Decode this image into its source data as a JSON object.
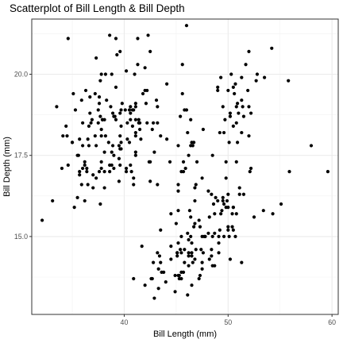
{
  "chart_data": {
    "type": "scatter",
    "title": "Scatterplot of Bill Length & Bill Depth",
    "xlabel": "Bill Length (mm)",
    "ylabel": "Bill Depth (mm)",
    "xlim": [
      31.1,
      60.6
    ],
    "ylim": [
      12.6,
      21.7
    ],
    "xticks": [
      40,
      50,
      60
    ],
    "yticks": [
      15.0,
      17.5,
      20.0
    ],
    "xtick_labels": [
      "40",
      "50",
      "60"
    ],
    "ytick_labels": [
      "15.0",
      "17.5",
      "20.0"
    ],
    "grid": true,
    "theme": "bw",
    "point_color": "#000000",
    "points": [
      [
        39.1,
        18.7
      ],
      [
        39.5,
        17.4
      ],
      [
        40.3,
        18.0
      ],
      [
        36.7,
        19.3
      ],
      [
        39.3,
        20.6
      ],
      [
        38.9,
        17.8
      ],
      [
        39.2,
        19.6
      ],
      [
        34.1,
        18.1
      ],
      [
        42.0,
        20.2
      ],
      [
        37.8,
        17.1
      ],
      [
        37.8,
        17.3
      ],
      [
        41.1,
        17.6
      ],
      [
        38.6,
        21.2
      ],
      [
        34.6,
        21.1
      ],
      [
        36.6,
        17.8
      ],
      [
        38.7,
        19.0
      ],
      [
        42.5,
        20.7
      ],
      [
        34.4,
        18.4
      ],
      [
        46.0,
        21.5
      ],
      [
        37.8,
        18.3
      ],
      [
        37.7,
        18.7
      ],
      [
        35.9,
        19.2
      ],
      [
        38.2,
        18.1
      ],
      [
        38.8,
        17.2
      ],
      [
        35.3,
        18.9
      ],
      [
        40.6,
        18.6
      ],
      [
        40.5,
        17.9
      ],
      [
        37.9,
        18.6
      ],
      [
        40.5,
        18.9
      ],
      [
        39.5,
        16.7
      ],
      [
        37.2,
        18.1
      ],
      [
        39.5,
        17.8
      ],
      [
        40.9,
        18.9
      ],
      [
        36.4,
        17.0
      ],
      [
        39.2,
        21.1
      ],
      [
        38.8,
        20.0
      ],
      [
        42.2,
        18.5
      ],
      [
        37.6,
        19.3
      ],
      [
        39.8,
        19.1
      ],
      [
        36.5,
        18.0
      ],
      [
        40.8,
        18.4
      ],
      [
        36.0,
        18.5
      ],
      [
        44.1,
        19.7
      ],
      [
        37.0,
        16.9
      ],
      [
        39.6,
        18.8
      ],
      [
        41.1,
        19.0
      ],
      [
        37.5,
        18.9
      ],
      [
        42.3,
        21.2
      ],
      [
        39.6,
        17.7
      ],
      [
        40.1,
        18.9
      ],
      [
        35.0,
        17.9
      ],
      [
        42.0,
        19.5
      ],
      [
        34.5,
        18.1
      ],
      [
        41.4,
        18.6
      ],
      [
        39.0,
        17.5
      ],
      [
        40.6,
        18.8
      ],
      [
        36.5,
        16.6
      ],
      [
        37.6,
        19.1
      ],
      [
        35.7,
        16.9
      ],
      [
        41.3,
        21.1
      ],
      [
        37.6,
        17.0
      ],
      [
        41.1,
        18.2
      ],
      [
        36.4,
        17.1
      ],
      [
        41.6,
        18.0
      ],
      [
        35.5,
        16.2
      ],
      [
        41.1,
        19.1
      ],
      [
        35.9,
        16.6
      ],
      [
        41.8,
        19.4
      ],
      [
        33.5,
        19.0
      ],
      [
        39.7,
        18.4
      ],
      [
        39.6,
        17.2
      ],
      [
        45.8,
        18.9
      ],
      [
        35.5,
        17.5
      ],
      [
        42.8,
        18.5
      ],
      [
        40.9,
        16.8
      ],
      [
        37.2,
        19.4
      ],
      [
        36.2,
        16.1
      ],
      [
        42.1,
        19.1
      ],
      [
        34.6,
        17.2
      ],
      [
        42.9,
        17.6
      ],
      [
        36.7,
        18.8
      ],
      [
        35.1,
        19.4
      ],
      [
        37.3,
        17.8
      ],
      [
        41.3,
        20.3
      ],
      [
        36.3,
        19.5
      ],
      [
        36.9,
        18.6
      ],
      [
        38.3,
        19.2
      ],
      [
        38.9,
        18.8
      ],
      [
        35.7,
        18.0
      ],
      [
        41.1,
        18.1
      ],
      [
        34.0,
        17.1
      ],
      [
        39.6,
        18.1
      ],
      [
        36.2,
        17.3
      ],
      [
        40.8,
        18.9
      ],
      [
        38.1,
        18.6
      ],
      [
        40.3,
        18.5
      ],
      [
        33.1,
        16.1
      ],
      [
        43.2,
        18.5
      ],
      [
        35.0,
        17.9
      ],
      [
        41.0,
        20.0
      ],
      [
        37.7,
        16.0
      ],
      [
        37.8,
        20.0
      ],
      [
        37.9,
        18.6
      ],
      [
        39.7,
        18.9
      ],
      [
        38.6,
        17.2
      ],
      [
        38.2,
        20.0
      ],
      [
        38.1,
        17.0
      ],
      [
        43.2,
        19.0
      ],
      [
        38.1,
        16.5
      ],
      [
        45.6,
        20.3
      ],
      [
        39.7,
        17.7
      ],
      [
        42.2,
        19.5
      ],
      [
        39.6,
        20.7
      ],
      [
        42.7,
        18.3
      ],
      [
        38.6,
        17.0
      ],
      [
        37.3,
        20.5
      ],
      [
        35.7,
        17.0
      ],
      [
        41.1,
        18.6
      ],
      [
        36.2,
        17.2
      ],
      [
        37.7,
        19.8
      ],
      [
        40.2,
        17.0
      ],
      [
        41.4,
        18.5
      ],
      [
        35.2,
        15.9
      ],
      [
        40.6,
        19.0
      ],
      [
        38.8,
        17.6
      ],
      [
        41.5,
        18.3
      ],
      [
        39.0,
        17.1
      ],
      [
        44.1,
        18.0
      ],
      [
        38.5,
        17.9
      ],
      [
        43.1,
        19.2
      ],
      [
        36.8,
        18.5
      ],
      [
        37.5,
        18.5
      ],
      [
        38.1,
        17.6
      ],
      [
        41.1,
        17.5
      ],
      [
        35.6,
        17.5
      ],
      [
        40.2,
        20.1
      ],
      [
        37.0,
        16.5
      ],
      [
        39.7,
        17.9
      ],
      [
        40.2,
        17.1
      ],
      [
        40.6,
        17.2
      ],
      [
        32.1,
        15.5
      ],
      [
        40.7,
        17.0
      ],
      [
        37.3,
        16.8
      ],
      [
        39.0,
        18.7
      ],
      [
        39.2,
        18.6
      ],
      [
        36.6,
        18.4
      ],
      [
        36.0,
        17.8
      ],
      [
        37.8,
        18.1
      ],
      [
        36.0,
        17.1
      ],
      [
        41.5,
        18.5
      ],
      [
        46.1,
        13.2
      ],
      [
        50.0,
        16.3
      ],
      [
        48.7,
        14.1
      ],
      [
        50.0,
        15.2
      ],
      [
        47.6,
        14.5
      ],
      [
        46.5,
        13.5
      ],
      [
        45.4,
        14.6
      ],
      [
        46.7,
        15.3
      ],
      [
        43.3,
        13.4
      ],
      [
        46.8,
        15.4
      ],
      [
        40.9,
        13.7
      ],
      [
        49.0,
        16.1
      ],
      [
        45.5,
        13.7
      ],
      [
        48.4,
        14.6
      ],
      [
        45.8,
        14.6
      ],
      [
        49.3,
        15.7
      ],
      [
        42.0,
        13.5
      ],
      [
        49.2,
        15.2
      ],
      [
        46.2,
        14.5
      ],
      [
        48.7,
        15.1
      ],
      [
        50.2,
        14.3
      ],
      [
        45.1,
        14.5
      ],
      [
        46.5,
        14.5
      ],
      [
        46.3,
        15.8
      ],
      [
        42.9,
        13.1
      ],
      [
        46.1,
        15.1
      ],
      [
        44.5,
        14.3
      ],
      [
        47.8,
        15.0
      ],
      [
        48.2,
        14.3
      ],
      [
        50.0,
        15.3
      ],
      [
        47.3,
        15.3
      ],
      [
        42.8,
        14.2
      ],
      [
        45.1,
        14.5
      ],
      [
        59.6,
        17.0
      ],
      [
        49.1,
        14.8
      ],
      [
        48.4,
        16.3
      ],
      [
        42.6,
        13.7
      ],
      [
        44.4,
        17.3
      ],
      [
        44.0,
        13.6
      ],
      [
        48.7,
        15.7
      ],
      [
        42.7,
        13.7
      ],
      [
        49.6,
        16.0
      ],
      [
        45.3,
        13.7
      ],
      [
        49.6,
        15.0
      ],
      [
        50.5,
        15.9
      ],
      [
        43.6,
        13.9
      ],
      [
        45.5,
        13.9
      ],
      [
        50.5,
        15.9
      ],
      [
        44.9,
        13.3
      ],
      [
        45.2,
        15.8
      ],
      [
        46.6,
        14.2
      ],
      [
        48.5,
        14.1
      ],
      [
        45.1,
        14.4
      ],
      [
        50.1,
        15.0
      ],
      [
        46.5,
        14.4
      ],
      [
        45.0,
        15.4
      ],
      [
        43.8,
        13.9
      ],
      [
        45.5,
        15.0
      ],
      [
        43.2,
        14.5
      ],
      [
        50.4,
        15.3
      ],
      [
        45.3,
        13.8
      ],
      [
        46.2,
        14.9
      ],
      [
        45.7,
        13.9
      ],
      [
        54.3,
        15.7
      ],
      [
        45.8,
        14.2
      ],
      [
        49.8,
        16.8
      ],
      [
        46.2,
        14.4
      ],
      [
        49.5,
        16.2
      ],
      [
        43.5,
        14.2
      ],
      [
        50.7,
        15.0
      ],
      [
        47.7,
        15.0
      ],
      [
        46.4,
        15.6
      ],
      [
        48.2,
        15.6
      ],
      [
        46.5,
        14.8
      ],
      [
        46.4,
        15.0
      ],
      [
        48.6,
        16.0
      ],
      [
        47.5,
        14.2
      ],
      [
        51.1,
        16.3
      ],
      [
        45.2,
        13.8
      ],
      [
        45.2,
        16.4
      ],
      [
        49.1,
        14.5
      ],
      [
        52.5,
        15.6
      ],
      [
        47.4,
        14.6
      ],
      [
        50.0,
        15.9
      ],
      [
        44.9,
        13.8
      ],
      [
        50.8,
        17.3
      ],
      [
        43.4,
        14.4
      ],
      [
        51.3,
        14.2
      ],
      [
        47.5,
        14.0
      ],
      [
        52.1,
        17.0
      ],
      [
        47.5,
        15.0
      ],
      [
        52.2,
        17.1
      ],
      [
        45.5,
        14.5
      ],
      [
        49.5,
        16.1
      ],
      [
        44.5,
        14.7
      ],
      [
        50.8,
        15.7
      ],
      [
        49.4,
        15.8
      ],
      [
        46.9,
        14.6
      ],
      [
        48.4,
        14.4
      ],
      [
        51.1,
        16.5
      ],
      [
        48.5,
        15.0
      ],
      [
        55.9,
        17.0
      ],
      [
        47.2,
        15.5
      ],
      [
        49.1,
        15.0
      ],
      [
        47.3,
        13.8
      ],
      [
        46.8,
        16.1
      ],
      [
        41.7,
        14.7
      ],
      [
        53.4,
        15.8
      ],
      [
        43.3,
        14.0
      ],
      [
        48.1,
        15.1
      ],
      [
        50.5,
        15.2
      ],
      [
        49.8,
        15.9
      ],
      [
        43.5,
        15.2
      ],
      [
        51.5,
        16.3
      ],
      [
        46.2,
        14.1
      ],
      [
        55.1,
        16.0
      ],
      [
        44.5,
        15.7
      ],
      [
        48.8,
        16.2
      ],
      [
        47.2,
        13.7
      ],
      [
        46.8,
        14.3
      ],
      [
        50.4,
        15.7
      ],
      [
        45.2,
        14.8
      ],
      [
        49.9,
        16.1
      ],
      [
        46.5,
        17.9
      ],
      [
        50.0,
        19.5
      ],
      [
        51.3,
        19.2
      ],
      [
        45.4,
        18.7
      ],
      [
        52.7,
        19.8
      ],
      [
        45.2,
        17.8
      ],
      [
        46.1,
        18.2
      ],
      [
        51.3,
        18.2
      ],
      [
        46.0,
        18.9
      ],
      [
        51.3,
        19.9
      ],
      [
        46.6,
        17.8
      ],
      [
        51.7,
        20.3
      ],
      [
        47.0,
        17.3
      ],
      [
        52.0,
        18.1
      ],
      [
        45.9,
        17.1
      ],
      [
        50.5,
        19.6
      ],
      [
        50.3,
        20.0
      ],
      [
        58.0,
        17.8
      ],
      [
        46.4,
        18.6
      ],
      [
        49.2,
        18.2
      ],
      [
        42.4,
        17.3
      ],
      [
        48.5,
        17.5
      ],
      [
        43.2,
        16.6
      ],
      [
        50.6,
        19.4
      ],
      [
        46.7,
        17.9
      ],
      [
        52.0,
        19.0
      ],
      [
        50.5,
        18.4
      ],
      [
        49.5,
        19.0
      ],
      [
        46.4,
        17.8
      ],
      [
        52.8,
        20.0
      ],
      [
        40.9,
        16.6
      ],
      [
        54.2,
        20.8
      ],
      [
        42.5,
        16.7
      ],
      [
        51.0,
        18.8
      ],
      [
        49.7,
        18.6
      ],
      [
        47.5,
        16.8
      ],
      [
        47.6,
        18.3
      ],
      [
        52.0,
        20.7
      ],
      [
        46.9,
        16.6
      ],
      [
        53.5,
        19.9
      ],
      [
        49.0,
        19.5
      ],
      [
        46.2,
        17.5
      ],
      [
        50.9,
        19.1
      ],
      [
        45.5,
        17.0
      ],
      [
        50.9,
        17.9
      ],
      [
        50.8,
        18.5
      ],
      [
        50.1,
        17.9
      ],
      [
        49.0,
        19.6
      ],
      [
        51.5,
        18.7
      ],
      [
        49.8,
        17.3
      ],
      [
        48.1,
        16.4
      ],
      [
        51.4,
        19.0
      ],
      [
        45.7,
        17.3
      ],
      [
        50.7,
        19.7
      ],
      [
        42.5,
        17.3
      ],
      [
        52.2,
        18.8
      ],
      [
        45.2,
        16.6
      ],
      [
        49.3,
        19.9
      ],
      [
        50.2,
        18.8
      ],
      [
        45.6,
        19.4
      ],
      [
        51.9,
        19.5
      ],
      [
        46.8,
        16.5
      ],
      [
        45.7,
        17.0
      ],
      [
        55.8,
        19.8
      ],
      [
        43.5,
        18.1
      ],
      [
        49.6,
        18.2
      ],
      [
        50.8,
        19.0
      ],
      [
        50.2,
        18.7
      ]
    ]
  }
}
